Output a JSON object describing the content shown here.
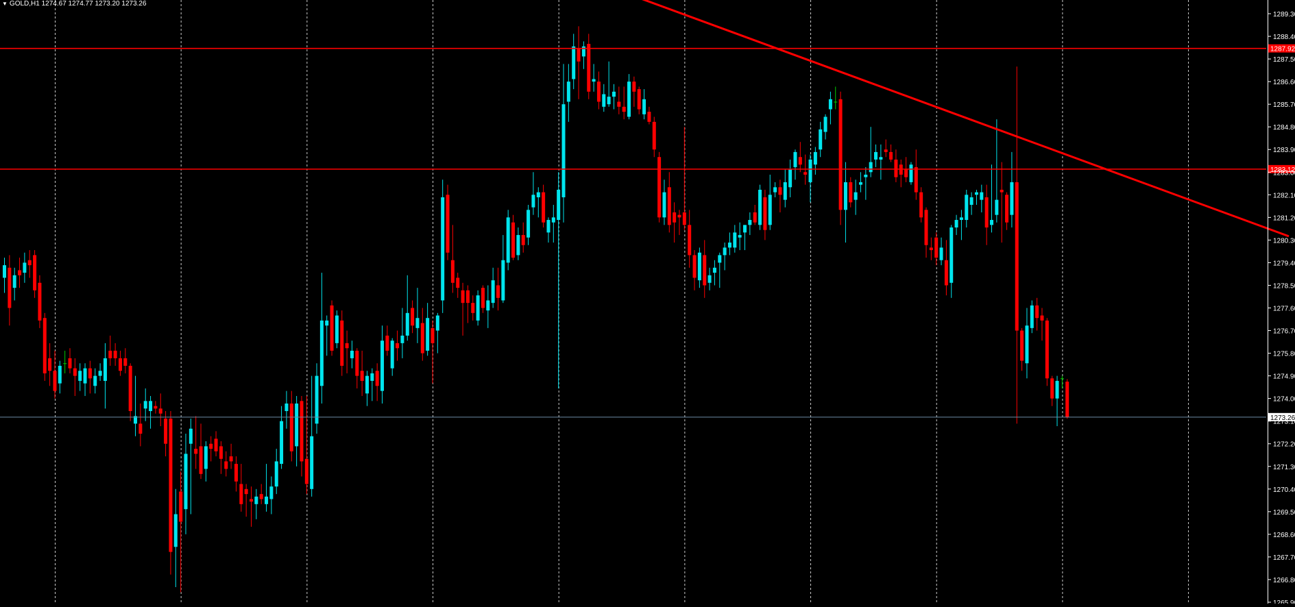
{
  "colors": {
    "background": "#000000",
    "bull": "#00E5EE",
    "bear": "#FF0000",
    "neutral": "#00CC00",
    "grid": "#FFFFFF",
    "axis_text": "#FFFFFF",
    "level_line": "#FF0000",
    "trend_line": "#FF0000",
    "bid_line": "#6E8CA5"
  },
  "header": {
    "menu_icon": "triangle-down-icon",
    "text": "GOLD,H1  1274.67 1274.77 1273.20 1273.26"
  },
  "chart_data": {
    "type": "candlestick",
    "symbol": "GOLD",
    "timeframe": "H1",
    "last_bar": {
      "open": 1274.67,
      "high": 1274.77,
      "low": 1273.2,
      "close": 1273.26
    },
    "ylim": [
      1265.9,
      1289.8
    ],
    "y_ticks": [
      "1289.30",
      "1288.40",
      "1287.50",
      "1286.60",
      "1285.70",
      "1284.80",
      "1283.90",
      "1283.00",
      "1282.10",
      "1281.20",
      "1280.30",
      "1279.40",
      "1278.50",
      "1277.60",
      "1276.70",
      "1275.80",
      "1274.90",
      "1274.00",
      "1273.10",
      "1272.20",
      "1271.30",
      "1270.40",
      "1269.50",
      "1268.60",
      "1267.70",
      "1266.80",
      "1265.90"
    ],
    "levels": [
      {
        "name": "resistance",
        "price": 1287.92,
        "label": "1287.92"
      },
      {
        "name": "support",
        "price": 1283.12,
        "label": "1283.12"
      }
    ],
    "bid": {
      "price": 1273.26,
      "label": "1273.26"
    },
    "trendline": {
      "from": {
        "bar": 125,
        "price": 1290.0
      },
      "to": {
        "bar": 255,
        "price": 1280.45
      }
    },
    "grid_period_bars": 25,
    "bars": [
      [
        1278.8,
        1279.6,
        1278.2,
        1279.3
      ],
      [
        1279.2,
        1279.7,
        1276.9,
        1277.6
      ],
      [
        1278.4,
        1279.2,
        1277.9,
        1278.9
      ],
      [
        1279.1,
        1279.6,
        1278.4,
        1278.9
      ],
      [
        1279.0,
        1279.8,
        1278.6,
        1279.4
      ],
      [
        1279.5,
        1279.9,
        1278.8,
        1279.3
      ],
      [
        1279.7,
        1279.9,
        1278.0,
        1278.3
      ],
      [
        1278.6,
        1278.9,
        1276.8,
        1277.1
      ],
      [
        1277.2,
        1277.4,
        1274.7,
        1275.0
      ],
      [
        1275.6,
        1276.2,
        1274.5,
        1275.1
      ],
      [
        1275.1,
        1275.9,
        1274.0,
        1274.3
      ],
      [
        1274.6,
        1275.5,
        1274.2,
        1275.3
      ],
      [
        1275.4,
        1275.9,
        1275.0,
        1275.4
      ],
      [
        1275.6,
        1276.0,
        1275.0,
        1275.2
      ],
      [
        1275.2,
        1275.6,
        1274.1,
        1274.9
      ],
      [
        1274.7,
        1275.4,
        1274.3,
        1275.1
      ],
      [
        1274.6,
        1275.4,
        1274.1,
        1275.2
      ],
      [
        1275.2,
        1275.5,
        1274.2,
        1274.8
      ],
      [
        1274.5,
        1275.2,
        1274.2,
        1274.9
      ],
      [
        1274.9,
        1275.4,
        1274.7,
        1275.1
      ],
      [
        1274.7,
        1276.2,
        1273.6,
        1275.6
      ],
      [
        1275.9,
        1276.5,
        1275.3,
        1275.6
      ],
      [
        1275.9,
        1276.2,
        1275.3,
        1275.6
      ],
      [
        1275.6,
        1275.9,
        1274.9,
        1275.1
      ],
      [
        1275.6,
        1276.0,
        1275.0,
        1275.3
      ],
      [
        1275.3,
        1275.4,
        1273.1,
        1273.5
      ],
      [
        1273.0,
        1274.9,
        1272.5,
        1273.3
      ],
      [
        1273.0,
        1273.8,
        1272.1,
        1272.6
      ],
      [
        1273.6,
        1274.4,
        1273.1,
        1273.9
      ],
      [
        1273.5,
        1274.1,
        1272.8,
        1273.9
      ],
      [
        1273.7,
        1273.9,
        1273.4,
        1273.6
      ],
      [
        1273.6,
        1274.2,
        1272.9,
        1273.4
      ],
      [
        1273.2,
        1273.5,
        1271.7,
        1272.2
      ],
      [
        1273.2,
        1273.5,
        1267.0,
        1267.9
      ],
      [
        1268.1,
        1270.4,
        1266.5,
        1269.4
      ],
      [
        1270.3,
        1271.1,
        1266.3,
        1269.1
      ],
      [
        1269.6,
        1272.6,
        1268.6,
        1271.8
      ],
      [
        1272.2,
        1273.2,
        1269.4,
        1272.8
      ],
      [
        1272.0,
        1273.3,
        1271.2,
        1271.8
      ],
      [
        1272.1,
        1273.0,
        1270.8,
        1271.0
      ],
      [
        1271.2,
        1272.3,
        1270.7,
        1272.1
      ],
      [
        1272.2,
        1272.5,
        1271.5,
        1272.0
      ],
      [
        1272.4,
        1272.7,
        1271.7,
        1271.9
      ],
      [
        1272.1,
        1272.3,
        1271.0,
        1271.6
      ],
      [
        1271.5,
        1271.9,
        1270.9,
        1271.2
      ],
      [
        1271.7,
        1272.2,
        1271.2,
        1271.5
      ],
      [
        1271.4,
        1271.7,
        1270.3,
        1270.7
      ],
      [
        1270.6,
        1271.4,
        1269.5,
        1269.8
      ],
      [
        1270.4,
        1270.6,
        1269.3,
        1270.2
      ],
      [
        1270.0,
        1270.5,
        1268.9,
        1269.9
      ],
      [
        1269.8,
        1270.4,
        1269.2,
        1270.1
      ],
      [
        1270.2,
        1270.6,
        1269.8,
        1270.0
      ],
      [
        1269.8,
        1271.4,
        1269.5,
        1270.1
      ],
      [
        1270.0,
        1270.9,
        1269.4,
        1270.5
      ],
      [
        1270.5,
        1272.0,
        1270.2,
        1271.5
      ],
      [
        1271.4,
        1273.7,
        1271.2,
        1273.1
      ],
      [
        1273.5,
        1274.3,
        1272.8,
        1273.8
      ],
      [
        1273.8,
        1274.3,
        1271.5,
        1271.9
      ],
      [
        1272.1,
        1274.1,
        1271.3,
        1273.8
      ],
      [
        1273.9,
        1274.1,
        1270.9,
        1271.5
      ],
      [
        1271.6,
        1274.1,
        1270.2,
        1270.6
      ],
      [
        1270.4,
        1274.9,
        1270.1,
        1272.5
      ],
      [
        1273.0,
        1275.4,
        1272.6,
        1274.9
      ],
      [
        1274.5,
        1279.0,
        1273.8,
        1277.1
      ],
      [
        1276.9,
        1277.3,
        1275.7,
        1277.1
      ],
      [
        1277.7,
        1277.9,
        1275.7,
        1275.9
      ],
      [
        1276.2,
        1277.5,
        1276.0,
        1277.3
      ],
      [
        1277.1,
        1277.5,
        1274.9,
        1275.3
      ],
      [
        1276.2,
        1276.7,
        1275.0,
        1276.0
      ],
      [
        1275.6,
        1276.3,
        1275.2,
        1275.9
      ],
      [
        1275.9,
        1276.0,
        1274.4,
        1274.9
      ],
      [
        1275.1,
        1275.9,
        1274.1,
        1274.7
      ],
      [
        1274.2,
        1275.1,
        1273.7,
        1274.9
      ],
      [
        1274.7,
        1275.2,
        1273.9,
        1275.0
      ],
      [
        1275.1,
        1275.4,
        1273.9,
        1274.5
      ],
      [
        1274.3,
        1276.9,
        1273.8,
        1276.3
      ],
      [
        1276.5,
        1276.9,
        1275.7,
        1275.9
      ],
      [
        1275.2,
        1276.4,
        1274.9,
        1276.3
      ],
      [
        1276.2,
        1276.7,
        1275.5,
        1276.0
      ],
      [
        1276.2,
        1277.6,
        1275.6,
        1276.5
      ],
      [
        1276.5,
        1278.9,
        1276.3,
        1277.4
      ],
      [
        1277.6,
        1277.9,
        1276.6,
        1276.9
      ],
      [
        1276.8,
        1278.4,
        1276.2,
        1277.2
      ],
      [
        1277.0,
        1277.6,
        1275.5,
        1275.8
      ],
      [
        1275.9,
        1277.8,
        1275.7,
        1277.2
      ],
      [
        1276.8,
        1277.1,
        1274.6,
        1276.2
      ],
      [
        1276.7,
        1277.4,
        1275.8,
        1277.3
      ],
      [
        1277.9,
        1282.7,
        1277.4,
        1282.0
      ],
      [
        1282.1,
        1282.5,
        1279.5,
        1279.8
      ],
      [
        1279.5,
        1280.9,
        1278.2,
        1278.6
      ],
      [
        1278.8,
        1279.0,
        1278.0,
        1278.4
      ],
      [
        1278.3,
        1278.6,
        1276.5,
        1277.8
      ],
      [
        1278.3,
        1278.5,
        1277.0,
        1277.8
      ],
      [
        1277.8,
        1278.1,
        1277.1,
        1277.4
      ],
      [
        1277.1,
        1278.3,
        1276.9,
        1278.1
      ],
      [
        1278.4,
        1278.5,
        1277.4,
        1277.6
      ],
      [
        1277.5,
        1278.5,
        1276.8,
        1277.9
      ],
      [
        1277.8,
        1279.2,
        1277.6,
        1278.7
      ],
      [
        1278.5,
        1279.2,
        1277.5,
        1278.0
      ],
      [
        1277.9,
        1280.5,
        1277.8,
        1279.5
      ],
      [
        1279.4,
        1281.5,
        1279.1,
        1281.2
      ],
      [
        1281.0,
        1281.3,
        1279.5,
        1279.6
      ],
      [
        1279.7,
        1280.8,
        1279.5,
        1280.5
      ],
      [
        1280.5,
        1281.0,
        1279.8,
        1280.1
      ],
      [
        1280.4,
        1281.7,
        1280.1,
        1281.5
      ],
      [
        1281.6,
        1283.0,
        1281.3,
        1282.1
      ],
      [
        1282.0,
        1282.4,
        1281.2,
        1282.2
      ],
      [
        1282.2,
        1282.5,
        1280.8,
        1281.0
      ],
      [
        1280.6,
        1281.2,
        1280.2,
        1281.1
      ],
      [
        1281.0,
        1281.7,
        1280.2,
        1281.2
      ],
      [
        1281.1,
        1283.0,
        1274.4,
        1282.3
      ],
      [
        1282.0,
        1287.3,
        1281.0,
        1285.7
      ],
      [
        1285.8,
        1287.3,
        1285.0,
        1286.6
      ],
      [
        1286.7,
        1288.5,
        1286.3,
        1288.0
      ],
      [
        1287.9,
        1288.8,
        1285.9,
        1287.4
      ],
      [
        1287.6,
        1288.2,
        1287.1,
        1288.0
      ],
      [
        1288.1,
        1288.5,
        1285.9,
        1286.2
      ],
      [
        1286.6,
        1287.3,
        1286.2,
        1286.7
      ],
      [
        1286.6,
        1287.0,
        1285.5,
        1285.8
      ],
      [
        1285.6,
        1286.5,
        1285.4,
        1286.1
      ],
      [
        1285.7,
        1287.4,
        1285.6,
        1286.0
      ],
      [
        1286.0,
        1286.5,
        1285.5,
        1286.2
      ],
      [
        1285.8,
        1286.4,
        1285.3,
        1285.6
      ],
      [
        1285.6,
        1286.4,
        1285.1,
        1285.4
      ],
      [
        1285.2,
        1286.9,
        1285.1,
        1286.6
      ],
      [
        1286.6,
        1286.8,
        1285.6,
        1286.2
      ],
      [
        1286.3,
        1286.4,
        1285.3,
        1285.5
      ],
      [
        1285.3,
        1286.3,
        1285.1,
        1285.9
      ],
      [
        1285.4,
        1285.6,
        1284.9,
        1285.0
      ],
      [
        1285.0,
        1285.2,
        1283.6,
        1283.9
      ],
      [
        1283.6,
        1283.8,
        1281.0,
        1281.2
      ],
      [
        1281.2,
        1282.7,
        1280.9,
        1282.2
      ],
      [
        1282.4,
        1283.0,
        1280.6,
        1280.9
      ],
      [
        1281.4,
        1281.8,
        1280.2,
        1281.0
      ],
      [
        1281.3,
        1281.5,
        1280.5,
        1281.2
      ],
      [
        1281.4,
        1284.8,
        1280.7,
        1280.9
      ],
      [
        1280.9,
        1281.5,
        1279.2,
        1279.7
      ],
      [
        1279.7,
        1279.9,
        1278.3,
        1278.8
      ],
      [
        1278.7,
        1280.0,
        1278.4,
        1279.8
      ],
      [
        1279.7,
        1280.3,
        1278.0,
        1278.5
      ],
      [
        1278.6,
        1279.2,
        1278.3,
        1278.9
      ],
      [
        1279.0,
        1279.5,
        1278.5,
        1279.2
      ],
      [
        1279.4,
        1279.8,
        1278.4,
        1279.7
      ],
      [
        1279.7,
        1280.2,
        1279.1,
        1280.0
      ],
      [
        1280.0,
        1280.6,
        1279.7,
        1280.2
      ],
      [
        1280.0,
        1280.9,
        1279.8,
        1280.6
      ],
      [
        1280.4,
        1281.0,
        1279.9,
        1280.5
      ],
      [
        1280.6,
        1280.9,
        1279.9,
        1280.9
      ],
      [
        1280.9,
        1281.4,
        1280.5,
        1281.1
      ],
      [
        1281.4,
        1281.7,
        1280.9,
        1281.0
      ],
      [
        1280.9,
        1282.5,
        1280.7,
        1282.3
      ],
      [
        1282.0,
        1282.3,
        1280.3,
        1280.7
      ],
      [
        1280.9,
        1282.9,
        1280.7,
        1282.1
      ],
      [
        1282.2,
        1282.6,
        1282.0,
        1282.4
      ],
      [
        1282.4,
        1282.7,
        1281.4,
        1282.1
      ],
      [
        1281.9,
        1283.1,
        1281.6,
        1282.6
      ],
      [
        1282.4,
        1283.5,
        1282.0,
        1283.1
      ],
      [
        1283.2,
        1283.9,
        1282.7,
        1283.8
      ],
      [
        1283.6,
        1284.2,
        1283.0,
        1283.3
      ],
      [
        1283.0,
        1283.7,
        1282.5,
        1282.9
      ],
      [
        1282.6,
        1283.7,
        1281.8,
        1283.5
      ],
      [
        1283.3,
        1284.0,
        1282.9,
        1283.8
      ],
      [
        1283.9,
        1285.0,
        1283.6,
        1284.7
      ],
      [
        1284.6,
        1285.3,
        1284.3,
        1285.2
      ],
      [
        1285.5,
        1286.2,
        1284.9,
        1285.9
      ],
      [
        1285.8,
        1286.4,
        1285.5,
        1285.8
      ],
      [
        1285.9,
        1286.2,
        1280.9,
        1281.5
      ],
      [
        1281.5,
        1283.4,
        1280.2,
        1282.6
      ],
      [
        1282.6,
        1282.8,
        1281.6,
        1281.8
      ],
      [
        1281.9,
        1282.7,
        1281.3,
        1282.2
      ],
      [
        1282.5,
        1283.0,
        1282.2,
        1282.6
      ],
      [
        1282.8,
        1283.2,
        1281.9,
        1282.9
      ],
      [
        1283.0,
        1284.8,
        1282.8,
        1283.4
      ],
      [
        1283.5,
        1284.1,
        1283.2,
        1283.8
      ],
      [
        1283.5,
        1284.1,
        1282.7,
        1283.6
      ],
      [
        1283.9,
        1284.3,
        1283.6,
        1283.8
      ],
      [
        1283.8,
        1284.1,
        1283.4,
        1283.5
      ],
      [
        1283.5,
        1283.9,
        1282.6,
        1282.8
      ],
      [
        1283.3,
        1283.5,
        1282.4,
        1282.9
      ],
      [
        1283.1,
        1283.6,
        1282.6,
        1282.8
      ],
      [
        1282.6,
        1283.4,
        1282.5,
        1283.3
      ],
      [
        1283.2,
        1283.9,
        1281.9,
        1282.2
      ],
      [
        1282.2,
        1282.4,
        1281.0,
        1281.2
      ],
      [
        1281.5,
        1281.6,
        1279.6,
        1280.1
      ],
      [
        1280.0,
        1280.4,
        1279.5,
        1279.9
      ],
      [
        1280.4,
        1280.6,
        1279.3,
        1279.6
      ],
      [
        1279.5,
        1280.4,
        1279.3,
        1280.0
      ],
      [
        1279.5,
        1280.3,
        1278.1,
        1278.5
      ],
      [
        1278.6,
        1280.9,
        1278.0,
        1280.8
      ],
      [
        1280.8,
        1281.3,
        1280.5,
        1281.1
      ],
      [
        1281.1,
        1281.5,
        1280.3,
        1281.2
      ],
      [
        1281.1,
        1282.3,
        1280.8,
        1282.1
      ],
      [
        1281.7,
        1282.2,
        1281.3,
        1282.0
      ],
      [
        1282.1,
        1282.3,
        1281.7,
        1282.2
      ],
      [
        1281.9,
        1282.5,
        1281.4,
        1282.2
      ],
      [
        1282.0,
        1282.5,
        1280.1,
        1280.8
      ],
      [
        1280.9,
        1283.3,
        1280.6,
        1281.1
      ],
      [
        1281.3,
        1285.1,
        1281.0,
        1281.9
      ],
      [
        1282.3,
        1283.4,
        1280.2,
        1282.2
      ],
      [
        1282.1,
        1282.2,
        1280.7,
        1281.0
      ],
      [
        1281.3,
        1283.8,
        1280.8,
        1282.6
      ],
      [
        1282.6,
        1287.2,
        1273.0,
        1276.7
      ],
      [
        1276.7,
        1276.8,
        1275.1,
        1275.5
      ],
      [
        1275.4,
        1277.6,
        1274.8,
        1276.9
      ],
      [
        1276.8,
        1277.9,
        1276.6,
        1277.7
      ],
      [
        1277.7,
        1278.0,
        1276.7,
        1277.2
      ],
      [
        1277.3,
        1277.6,
        1276.3,
        1277.1
      ],
      [
        1277.1,
        1277.2,
        1274.5,
        1274.8
      ],
      [
        1274.8,
        1274.9,
        1273.7,
        1274.0
      ],
      [
        1274.0,
        1274.9,
        1272.9,
        1274.7
      ],
      [
        1274.8,
        1274.9,
        1274.4,
        1274.8
      ],
      [
        1274.67,
        1274.77,
        1273.2,
        1273.26
      ]
    ]
  }
}
